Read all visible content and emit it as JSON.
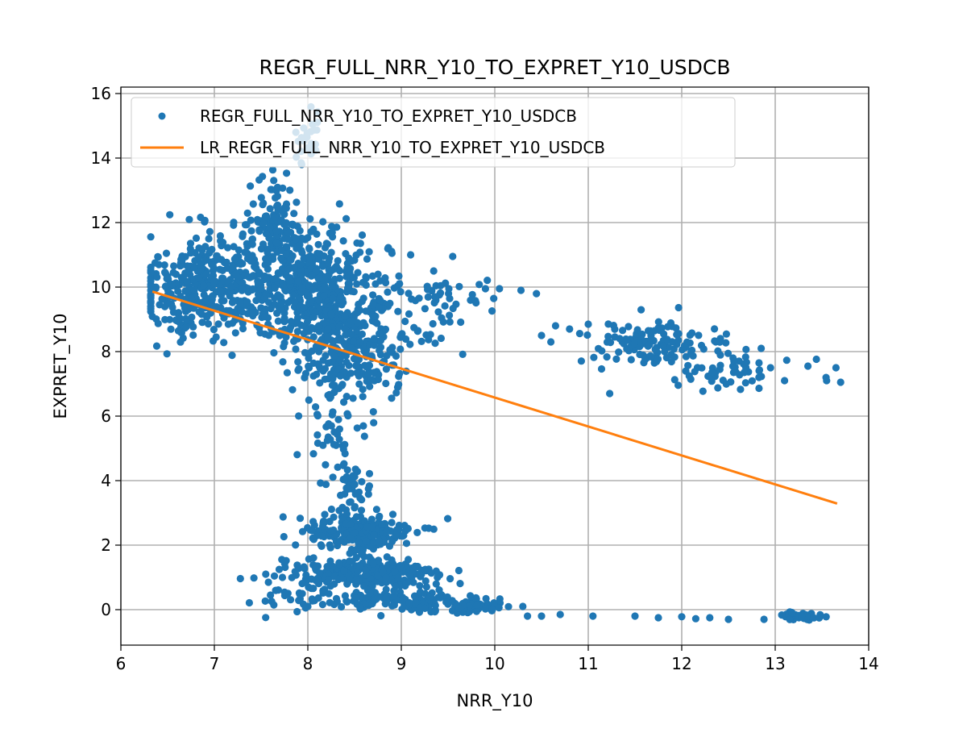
{
  "chart_data": {
    "type": "scatter",
    "title": "REGR_FULL_NRR_Y10_TO_EXPRET_Y10_USDCB",
    "xlabel": "NRR_Y10",
    "ylabel": "EXPRET_Y10",
    "xlim": [
      6.0,
      14.0
    ],
    "ylim": [
      -1.1,
      16.2
    ],
    "xticks": [
      "6",
      "7",
      "8",
      "9",
      "10",
      "11",
      "12",
      "13",
      "14"
    ],
    "yticks": [
      "0",
      "2",
      "4",
      "6",
      "8",
      "10",
      "12",
      "14",
      "16"
    ],
    "grid": true,
    "legend_position": "top-left",
    "colors": {
      "scatter": "#1f77b4",
      "line": "#ff7f0e",
      "grid": "#b0b0b0",
      "frame": "#000000"
    },
    "series": [
      {
        "name": "REGR_FULL_NRR_Y10_TO_EXPRET_Y10_USDCB",
        "kind": "scatter",
        "clusters": [
          {
            "cx": 6.9,
            "cy": 10.0,
            "sx": 0.35,
            "sy": 0.8,
            "n": 380
          },
          {
            "cx": 7.85,
            "cy": 10.3,
            "sx": 0.35,
            "sy": 0.9,
            "n": 320
          },
          {
            "cx": 8.3,
            "cy": 9.3,
            "sx": 0.3,
            "sy": 1.0,
            "n": 300
          },
          {
            "cx": 8.45,
            "cy": 7.6,
            "sx": 0.25,
            "sy": 0.7,
            "n": 150
          },
          {
            "cx": 7.65,
            "cy": 12.2,
            "sx": 0.12,
            "sy": 0.55,
            "n": 80
          },
          {
            "cx": 8.0,
            "cy": 14.6,
            "sx": 0.07,
            "sy": 0.5,
            "n": 25
          },
          {
            "cx": 9.4,
            "cy": 9.8,
            "sx": 0.4,
            "sy": 0.3,
            "n": 40
          },
          {
            "cx": 9.2,
            "cy": 8.6,
            "sx": 0.3,
            "sy": 0.4,
            "n": 30
          },
          {
            "cx": 11.7,
            "cy": 8.2,
            "sx": 0.4,
            "sy": 0.35,
            "n": 120
          },
          {
            "cx": 12.6,
            "cy": 7.4,
            "sx": 0.35,
            "sy": 0.25,
            "n": 50
          },
          {
            "cx": 8.3,
            "cy": 5.2,
            "sx": 0.1,
            "sy": 0.45,
            "n": 35
          },
          {
            "cx": 8.45,
            "cy": 3.6,
            "sx": 0.12,
            "sy": 0.5,
            "n": 40
          },
          {
            "cx": 8.55,
            "cy": 2.4,
            "sx": 0.3,
            "sy": 0.3,
            "n": 200
          },
          {
            "cx": 8.7,
            "cy": 1.1,
            "sx": 0.35,
            "sy": 0.25,
            "n": 220
          },
          {
            "cx": 7.9,
            "cy": 0.8,
            "sx": 0.25,
            "sy": 0.45,
            "n": 60
          },
          {
            "cx": 9.0,
            "cy": 0.3,
            "sx": 0.45,
            "sy": 0.15,
            "n": 120
          },
          {
            "cx": 9.7,
            "cy": 0.05,
            "sx": 0.2,
            "sy": 0.1,
            "n": 60
          },
          {
            "cx": 13.3,
            "cy": -0.2,
            "sx": 0.15,
            "sy": 0.06,
            "n": 45
          }
        ],
        "points": [
          [
            10.3,
            0.1
          ],
          [
            10.35,
            -0.2
          ],
          [
            10.5,
            -0.2
          ],
          [
            10.7,
            -0.15
          ],
          [
            11.05,
            -0.2
          ],
          [
            11.5,
            -0.2
          ],
          [
            11.75,
            -0.25
          ],
          [
            12.0,
            -0.22
          ],
          [
            12.15,
            -0.28
          ],
          [
            12.3,
            -0.25
          ],
          [
            12.5,
            -0.3
          ],
          [
            12.88,
            -0.3
          ],
          [
            10.28,
            9.9
          ],
          [
            9.9,
            9.95
          ],
          [
            10.05,
            9.95
          ],
          [
            10.5,
            8.5
          ],
          [
            10.6,
            8.3
          ],
          [
            10.65,
            8.8
          ],
          [
            10.8,
            8.7
          ],
          [
            11.0,
            8.85
          ],
          [
            12.85,
            8.1
          ],
          [
            12.95,
            7.5
          ],
          [
            13.1,
            7.1
          ],
          [
            13.35,
            7.55
          ],
          [
            13.65,
            7.5
          ],
          [
            13.55,
            7.1
          ],
          [
            13.7,
            7.05
          ],
          [
            7.6,
            0.45
          ],
          [
            7.55,
            1.1
          ],
          [
            8.0,
            0.1
          ],
          [
            9.1,
            11.0
          ],
          [
            9.55,
            10.95
          ],
          [
            8.9,
            11.05
          ],
          [
            7.7,
            8.5
          ]
        ]
      },
      {
        "name": "LR_REGR_FULL_NRR_Y10_TO_EXPRET_Y10_USDCB",
        "kind": "line",
        "x": [
          6.35,
          13.65
        ],
        "y": [
          9.85,
          3.3
        ]
      }
    ]
  }
}
